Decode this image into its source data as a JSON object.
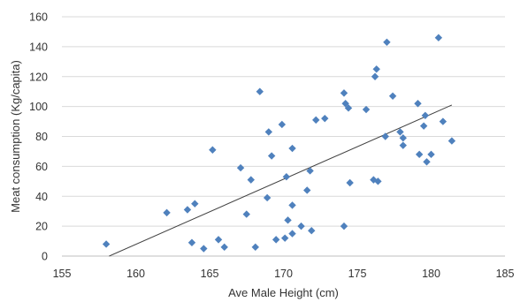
{
  "chart_data": {
    "type": "scatter",
    "xlabel": "Ave Male Height (cm)",
    "ylabel": "Meat consumption (Kg/capita)",
    "xlim": [
      155,
      185
    ],
    "ylim": [
      0,
      160
    ],
    "x_ticks": [
      155,
      160,
      165,
      170,
      175,
      180,
      185
    ],
    "y_ticks": [
      0,
      20,
      40,
      60,
      80,
      100,
      120,
      140,
      160
    ],
    "grid": "horizontal",
    "legend": "none",
    "marker": "diamond",
    "marker_color": "#4f81bd",
    "trendline": {
      "type": "linear",
      "x_start": 158.2,
      "y_start": 0,
      "x_end": 181.4,
      "y_end": 101,
      "color": "#404040"
    },
    "series": [
      {
        "points": [
          [
            158,
            8
          ],
          [
            162.1,
            29
          ],
          [
            163.5,
            31
          ],
          [
            163.8,
            9
          ],
          [
            164,
            35
          ],
          [
            164.6,
            5
          ],
          [
            165.2,
            71
          ],
          [
            165.6,
            11
          ],
          [
            166,
            6
          ],
          [
            167.1,
            59
          ],
          [
            167.5,
            28
          ],
          [
            167.8,
            51
          ],
          [
            168.1,
            6
          ],
          [
            168.4,
            110
          ],
          [
            168.9,
            39
          ],
          [
            169,
            83
          ],
          [
            169.2,
            67
          ],
          [
            169.5,
            11
          ],
          [
            169.9,
            88
          ],
          [
            170.1,
            12
          ],
          [
            170.2,
            53
          ],
          [
            170.3,
            24
          ],
          [
            170.6,
            34
          ],
          [
            170.6,
            72
          ],
          [
            170.6,
            15
          ],
          [
            171.2,
            20
          ],
          [
            171.6,
            44
          ],
          [
            171.8,
            57
          ],
          [
            171.9,
            17
          ],
          [
            172.2,
            91
          ],
          [
            172.8,
            92
          ],
          [
            174.1,
            109
          ],
          [
            174.1,
            20
          ],
          [
            174.2,
            102
          ],
          [
            174.4,
            99
          ],
          [
            174.5,
            49
          ],
          [
            175.6,
            98
          ],
          [
            176.1,
            51
          ],
          [
            176.2,
            120
          ],
          [
            176.3,
            125
          ],
          [
            176.4,
            50
          ],
          [
            176.9,
            80
          ],
          [
            177,
            143
          ],
          [
            177.4,
            107
          ],
          [
            177.9,
            83
          ],
          [
            178.1,
            79
          ],
          [
            178.1,
            74
          ],
          [
            179.1,
            102
          ],
          [
            179.2,
            68
          ],
          [
            179.5,
            87
          ],
          [
            179.6,
            94
          ],
          [
            179.7,
            63
          ],
          [
            180,
            68
          ],
          [
            180.5,
            146
          ],
          [
            180.8,
            90
          ],
          [
            181.4,
            77
          ]
        ]
      }
    ]
  }
}
